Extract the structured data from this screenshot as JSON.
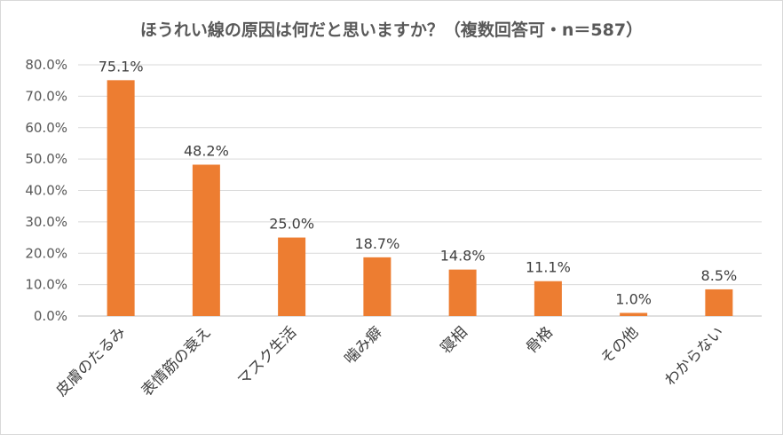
{
  "chart_data": {
    "type": "bar",
    "title": "ほうれい線の原因は何だと思いますか？（複数回答可・n＝587）",
    "categories": [
      "皮膚のたるみ",
      "表情筋の衰え",
      "マスク生活",
      "噛み癖",
      "寝相",
      "骨格",
      "その他",
      "わからない"
    ],
    "values": [
      75.1,
      48.2,
      25.0,
      18.7,
      14.8,
      11.1,
      1.0,
      8.5
    ],
    "data_labels": [
      "75.1%",
      "48.2%",
      "25.0%",
      "18.7%",
      "14.8%",
      "11.1%",
      "1.0%",
      "8.5%"
    ],
    "ylim": [
      0,
      80
    ],
    "yticks": [
      0,
      10,
      20,
      30,
      40,
      50,
      60,
      70,
      80
    ],
    "ytick_labels": [
      "0.0%",
      "10.0%",
      "20.0%",
      "30.0%",
      "40.0%",
      "50.0%",
      "60.0%",
      "70.0%",
      "80.0%"
    ],
    "xlabel": "",
    "ylabel": "",
    "grid": true,
    "legend": "none",
    "bar_color": "#ED7D31"
  }
}
